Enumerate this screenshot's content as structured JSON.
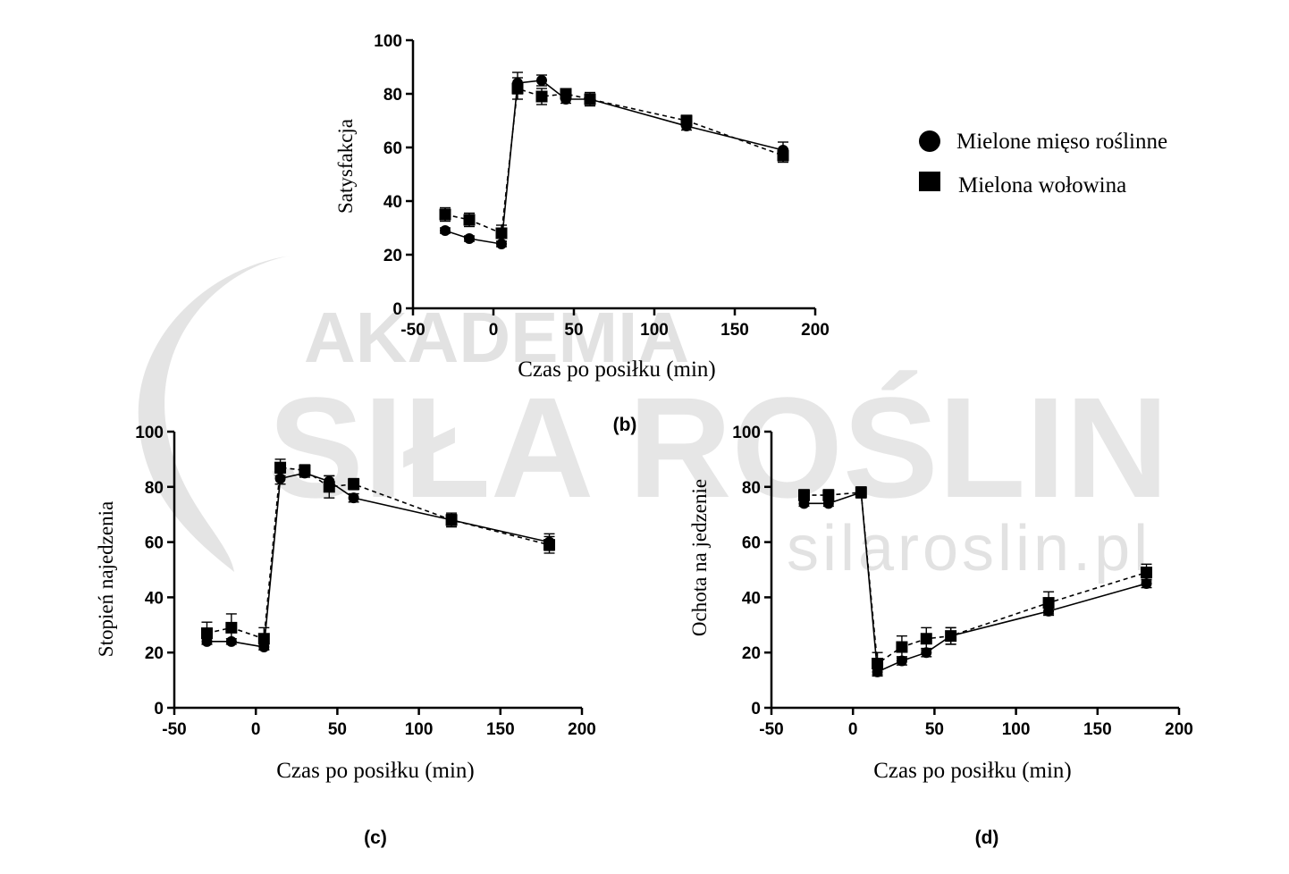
{
  "watermark": {
    "line1": "AKADEMIA",
    "line2": "SIŁA ROŚLIN",
    "url": "silaroslin.pl",
    "color": "#dcdcdc"
  },
  "legend": {
    "entries": [
      {
        "label": "Mielone mięso roślinne",
        "marker": "circle"
      },
      {
        "label": "Mielona wołowina",
        "marker": "square"
      }
    ]
  },
  "chart_data": [
    {
      "id": "b",
      "panel_label": "(b)",
      "type": "line",
      "ylabel": "Satysfakcja",
      "xlabel": "Czas po posiłku (min)",
      "xlim": [
        -50,
        200
      ],
      "ylim": [
        0,
        100
      ],
      "xticks": [
        -50,
        0,
        50,
        100,
        150,
        200
      ],
      "yticks": [
        0,
        20,
        40,
        60,
        80,
        100
      ],
      "series": [
        {
          "name": "Mielone mięso roślinne",
          "marker": "circle",
          "line": "solid",
          "x": [
            -30,
            -15,
            5,
            15,
            30,
            45,
            60,
            120,
            180
          ],
          "y": [
            29,
            26,
            24,
            84,
            85,
            78,
            78,
            68,
            59
          ],
          "err": [
            1,
            1,
            1,
            4,
            2,
            1.5,
            2,
            1.5,
            3
          ]
        },
        {
          "name": "Mielona wołowina",
          "marker": "square",
          "line": "dashed",
          "x": [
            -30,
            -15,
            5,
            15,
            30,
            45,
            60,
            120,
            180
          ],
          "y": [
            35,
            33,
            28,
            82,
            79,
            80,
            78,
            70,
            57
          ],
          "err": [
            2.5,
            2.5,
            3,
            4,
            3,
            1.5,
            2.5,
            2,
            2.5
          ]
        }
      ]
    },
    {
      "id": "c",
      "panel_label": "(c)",
      "type": "line",
      "ylabel": "Stopień najedzenia",
      "xlabel": "Czas po posiłku (min)",
      "xlim": [
        -50,
        200
      ],
      "ylim": [
        0,
        100
      ],
      "xticks": [
        -50,
        0,
        50,
        100,
        150,
        200
      ],
      "yticks": [
        0,
        20,
        40,
        60,
        80,
        100
      ],
      "series": [
        {
          "name": "Mielone mięso roślinne",
          "marker": "circle",
          "line": "solid",
          "x": [
            -30,
            -15,
            5,
            15,
            30,
            45,
            60,
            120,
            180
          ],
          "y": [
            24,
            24,
            22,
            83,
            85,
            82,
            76,
            68,
            60
          ],
          "err": [
            1,
            1,
            1,
            2,
            1.5,
            2,
            1.5,
            2,
            3
          ]
        },
        {
          "name": "Mielona wołowina",
          "marker": "square",
          "line": "dashed",
          "x": [
            -30,
            -15,
            5,
            15,
            30,
            45,
            60,
            120,
            180
          ],
          "y": [
            27,
            29,
            25,
            87,
            86,
            80,
            81,
            68,
            59
          ],
          "err": [
            4,
            5,
            4,
            3,
            2,
            4,
            2,
            2.5,
            3
          ]
        }
      ]
    },
    {
      "id": "d",
      "panel_label": "(d)",
      "type": "line",
      "ylabel": "Ochota na jedzenie",
      "xlabel": "Czas po posiłku (min)",
      "xlim": [
        -50,
        200
      ],
      "ylim": [
        0,
        100
      ],
      "xticks": [
        -50,
        0,
        50,
        100,
        150,
        200
      ],
      "yticks": [
        0,
        20,
        40,
        60,
        80,
        100
      ],
      "series": [
        {
          "name": "Mielone mięso roślinne",
          "marker": "circle",
          "line": "solid",
          "x": [
            -30,
            -15,
            5,
            15,
            30,
            45,
            60,
            120,
            180
          ],
          "y": [
            74,
            74,
            78,
            13,
            17,
            20,
            26,
            35,
            45
          ],
          "err": [
            1,
            1,
            1,
            1.5,
            1.5,
            1.5,
            3,
            1.5,
            1.5
          ]
        },
        {
          "name": "Mielona wołowina",
          "marker": "square",
          "line": "dashed",
          "x": [
            -30,
            -15,
            5,
            15,
            30,
            45,
            60,
            120,
            180
          ],
          "y": [
            77,
            77,
            78,
            16,
            22,
            25,
            26,
            38,
            49
          ],
          "err": [
            2,
            2,
            2,
            4,
            4,
            4,
            3,
            4,
            3
          ]
        }
      ]
    }
  ]
}
